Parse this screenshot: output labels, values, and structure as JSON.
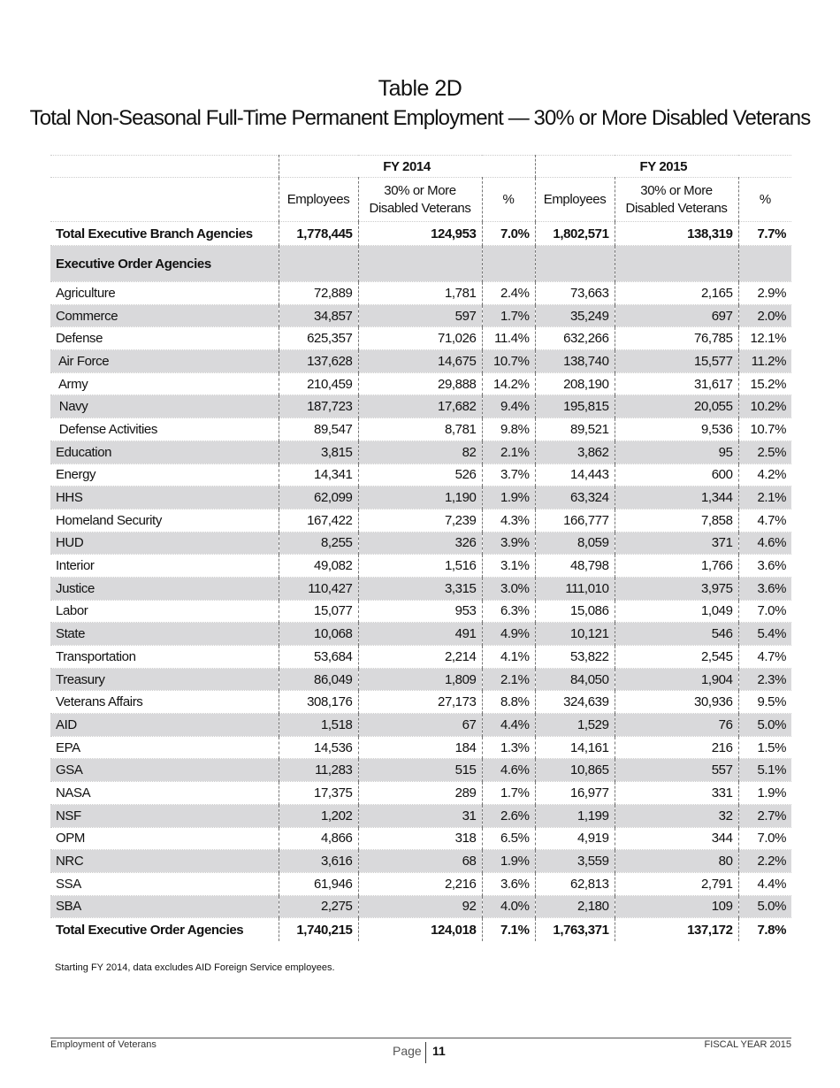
{
  "header": {
    "title": "Table 2D",
    "subtitle": "Total Non-Seasonal Full-Time Permanent Employment — 30% or More Disabled Veterans"
  },
  "table": {
    "groups": [
      "FY 2014",
      "FY 2015"
    ],
    "columns": [
      "Employees",
      "30% or More Disabled Veterans",
      "%",
      "Employees",
      "30% or More Disabled Veterans",
      "%"
    ],
    "total_branch": [
      "Total Executive Branch Agencies",
      "1,778,445",
      "124,953",
      "7.0%",
      "1,802,571",
      "138,319",
      "7.7%"
    ],
    "section": "Executive Order Agencies",
    "rows": [
      [
        "Agriculture",
        "72,889",
        "1,781",
        "2.4%",
        "73,663",
        "2,165",
        "2.9%"
      ],
      [
        "Commerce",
        "34,857",
        "597",
        "1.7%",
        "35,249",
        "697",
        "2.0%"
      ],
      [
        "Defense",
        "625,357",
        "71,026",
        "11.4%",
        "632,266",
        "76,785",
        "12.1%"
      ],
      [
        " Air Force",
        "137,628",
        "14,675",
        "10.7%",
        "138,740",
        "15,577",
        "11.2%"
      ],
      [
        " Army",
        "210,459",
        "29,888",
        "14.2%",
        "208,190",
        "31,617",
        "15.2%"
      ],
      [
        " Navy",
        "187,723",
        "17,682",
        "9.4%",
        "195,815",
        "20,055",
        "10.2%"
      ],
      [
        " Defense Activities",
        "89,547",
        "8,781",
        "9.8%",
        "89,521",
        "9,536",
        "10.7%"
      ],
      [
        "Education",
        "3,815",
        "82",
        "2.1%",
        "3,862",
        "95",
        "2.5%"
      ],
      [
        "Energy",
        "14,341",
        "526",
        "3.7%",
        "14,443",
        "600",
        "4.2%"
      ],
      [
        "HHS",
        "62,099",
        "1,190",
        "1.9%",
        "63,324",
        "1,344",
        "2.1%"
      ],
      [
        "Homeland Security",
        "167,422",
        "7,239",
        "4.3%",
        "166,777",
        "7,858",
        "4.7%"
      ],
      [
        "HUD",
        "8,255",
        "326",
        "3.9%",
        "8,059",
        "371",
        "4.6%"
      ],
      [
        "Interior",
        "49,082",
        "1,516",
        "3.1%",
        "48,798",
        "1,766",
        "3.6%"
      ],
      [
        "Justice",
        "110,427",
        "3,315",
        "3.0%",
        "111,010",
        "3,975",
        "3.6%"
      ],
      [
        "Labor",
        "15,077",
        "953",
        "6.3%",
        "15,086",
        "1,049",
        "7.0%"
      ],
      [
        "State",
        "10,068",
        "491",
        "4.9%",
        "10,121",
        "546",
        "5.4%"
      ],
      [
        "Transportation",
        "53,684",
        "2,214",
        "4.1%",
        "53,822",
        "2,545",
        "4.7%"
      ],
      [
        "Treasury",
        "86,049",
        "1,809",
        "2.1%",
        "84,050",
        "1,904",
        "2.3%"
      ],
      [
        "Veterans Affairs",
        "308,176",
        "27,173",
        "8.8%",
        "324,639",
        "30,936",
        "9.5%"
      ],
      [
        "AID",
        "1,518",
        "67",
        "4.4%",
        "1,529",
        "76",
        "5.0%"
      ],
      [
        "EPA",
        "14,536",
        "184",
        "1.3%",
        "14,161",
        "216",
        "1.5%"
      ],
      [
        "GSA",
        "11,283",
        "515",
        "4.6%",
        "10,865",
        "557",
        "5.1%"
      ],
      [
        "NASA",
        "17,375",
        "289",
        "1.7%",
        "16,977",
        "331",
        "1.9%"
      ],
      [
        "NSF",
        "1,202",
        "31",
        "2.6%",
        "1,199",
        "32",
        "2.7%"
      ],
      [
        "OPM",
        "4,866",
        "318",
        "6.5%",
        "4,919",
        "344",
        "7.0%"
      ],
      [
        "NRC",
        "3,616",
        "68",
        "1.9%",
        "3,559",
        "80",
        "2.2%"
      ],
      [
        "SSA",
        "61,946",
        "2,216",
        "3.6%",
        "62,813",
        "2,791",
        "4.4%"
      ],
      [
        "SBA",
        "2,275",
        "92",
        "4.0%",
        "2,180",
        "109",
        "5.0%"
      ]
    ],
    "total_order": [
      "Total Executive Order Agencies",
      "1,740,215",
      "124,018",
      "7.1%",
      "1,763,371",
      "137,172",
      "7.8%"
    ]
  },
  "footnote": "Starting FY 2014, data excludes AID Foreign Service employees.",
  "footer": {
    "left": "Employment of Veterans",
    "page_label": "Page",
    "page_number": "11",
    "right": "FISCAL YEAR 2015"
  }
}
